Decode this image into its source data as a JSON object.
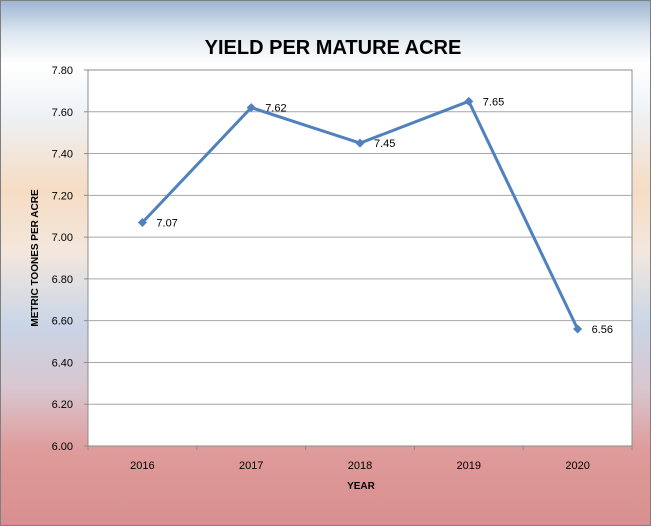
{
  "chart_data": {
    "type": "line",
    "title": "YIELD PER MATURE ACRE",
    "xlabel": "YEAR",
    "ylabel": "METRIC TOONES PER ACRE",
    "categories": [
      "2016",
      "2017",
      "2018",
      "2019",
      "2020"
    ],
    "series": [
      {
        "values": [
          7.07,
          7.62,
          7.45,
          7.65,
          6.56
        ]
      }
    ],
    "data_labels": [
      "7.07",
      "7.62",
      "7.45",
      "7.65",
      "6.56"
    ],
    "y_ticks": [
      "6.00",
      "6.20",
      "6.40",
      "6.60",
      "6.80",
      "7.00",
      "7.20",
      "7.40",
      "7.60",
      "7.80"
    ],
    "ylim": [
      6.0,
      7.8
    ],
    "grid": true,
    "legend": "none",
    "colors": {
      "line": "#4f81bd",
      "marker": "#4f81bd",
      "grid": "#a6a6a6",
      "plot_bg": "#ffffff"
    }
  }
}
